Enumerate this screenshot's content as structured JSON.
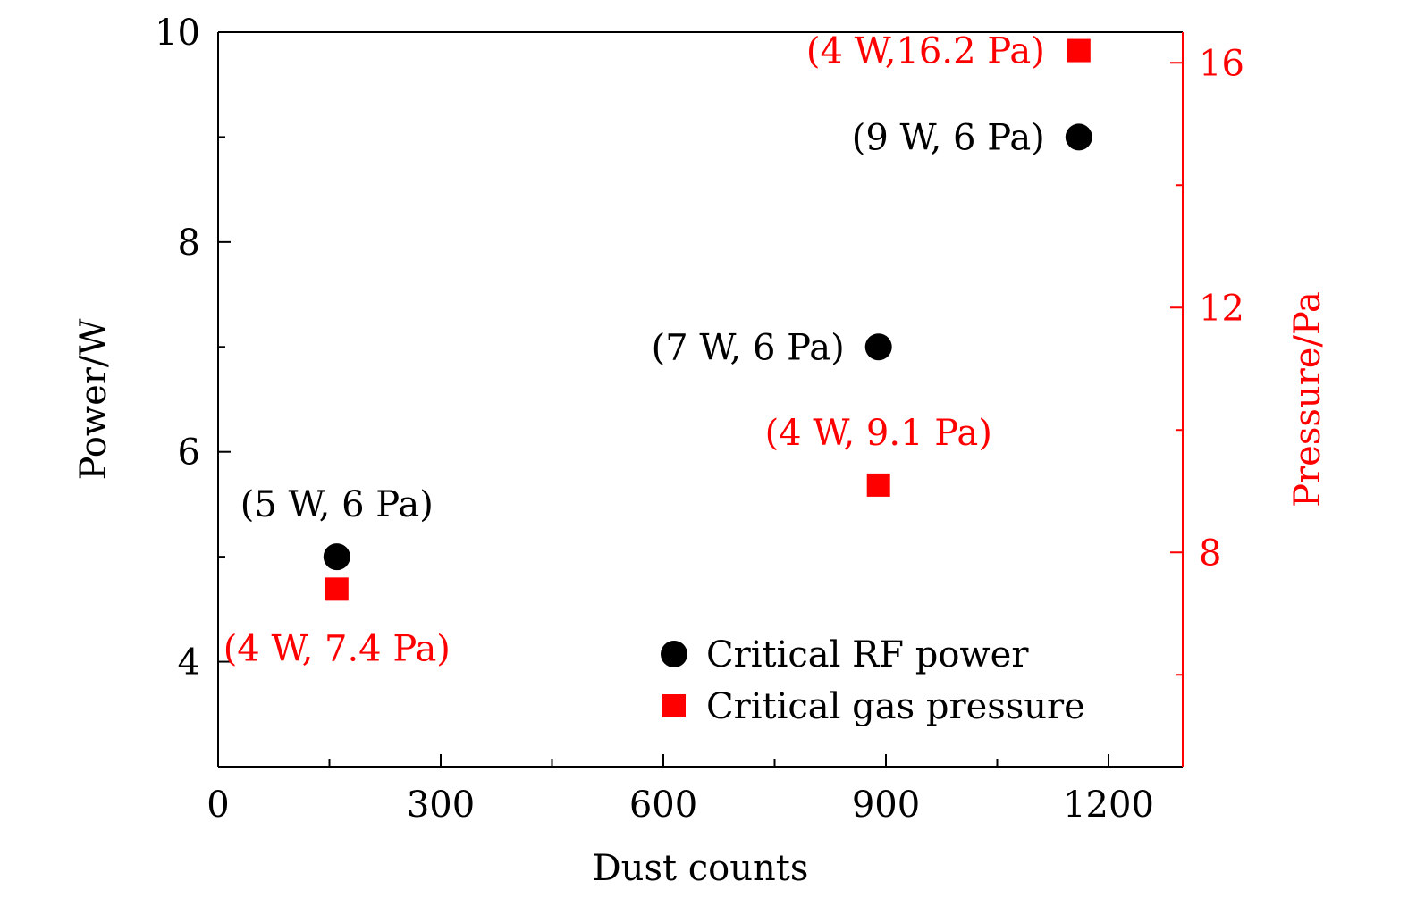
{
  "chart_data": {
    "type": "scatter",
    "xlabel": "Dust counts",
    "ylabel_left": "Power/W",
    "ylabel_right": "Pressure/Pa",
    "xlim": [
      0,
      1300
    ],
    "ylim_left": [
      3,
      10
    ],
    "ylim_right": [
      4.5,
      16.5
    ],
    "x_ticks": [
      0,
      300,
      600,
      900,
      1200
    ],
    "x_minor_ticks": [
      150,
      450,
      750,
      1050
    ],
    "y_left_ticks": [
      4,
      6,
      8,
      10
    ],
    "y_left_minor_ticks": [
      5,
      7,
      9
    ],
    "y_right_ticks": [
      8,
      12,
      16
    ],
    "y_right_minor_ticks": [
      6,
      10,
      14
    ],
    "series": [
      {
        "name": "Critical RF power",
        "axis": "left",
        "color": "#000000",
        "marker": "circle",
        "points": [
          {
            "x": 160,
            "y": 5,
            "label": "(5 W, 6 Pa)",
            "label_pos": "above"
          },
          {
            "x": 890,
            "y": 7,
            "label": "(7 W, 6 Pa)",
            "label_pos": "left"
          },
          {
            "x": 1160,
            "y": 9,
            "label": "(9 W, 6 Pa)",
            "label_pos": "left"
          }
        ]
      },
      {
        "name": "Critical gas pressure",
        "axis": "right",
        "color": "#ff0000",
        "marker": "square",
        "points": [
          {
            "x": 160,
            "y": 7.4,
            "label": "(4 W, 7.4 Pa)",
            "label_pos": "below"
          },
          {
            "x": 890,
            "y": 9.1,
            "label": "(4 W, 9.1 Pa)",
            "label_pos": "above"
          },
          {
            "x": 1160,
            "y": 16.2,
            "label": "(4 W,16.2 Pa)",
            "label_pos": "left"
          }
        ]
      }
    ],
    "legend_position": "bottom-right"
  }
}
